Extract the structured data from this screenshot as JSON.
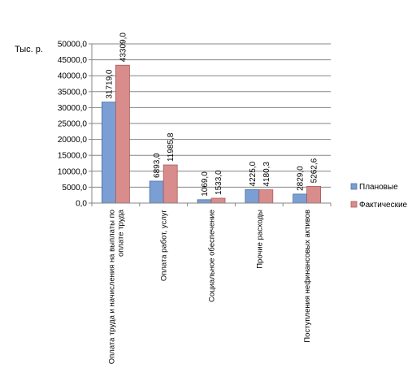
{
  "chart_data": {
    "type": "bar",
    "unit_label": "Тыс. р.",
    "categories": [
      [
        "Оплата труда и начисления на выплаты по",
        "оплате труда"
      ],
      [
        "Оплата работ, услуг"
      ],
      [
        "Социальное обеспечение"
      ],
      [
        "Прочие расходы"
      ],
      [
        "Поступления нефинансовых активов"
      ]
    ],
    "series": [
      {
        "name": "Плановые",
        "color": "#7b9fd4",
        "stroke": "#4a6fa5",
        "values": [
          31719.0,
          6893.0,
          1069.0,
          4225.0,
          2829.0
        ],
        "labels": [
          "31719,0",
          "6893,0",
          "1069,0",
          "4225,0",
          "2829,0"
        ]
      },
      {
        "name": "Фактические",
        "color": "#d98c8c",
        "stroke": "#a85a5a",
        "values": [
          43309.0,
          11985.8,
          1533.0,
          4180.3,
          5262.6
        ],
        "labels": [
          "43309,0",
          "11985,8",
          "1533,0",
          "4180,3",
          "5262,6"
        ]
      }
    ],
    "ylim": [
      0,
      50000
    ],
    "ytick_step": 5000,
    "ytick_labels": [
      "0,0",
      "5000,0",
      "10000,0",
      "15000,0",
      "20000,0",
      "25000,0",
      "30000,0",
      "35000,0",
      "40000,0",
      "45000,0",
      "50000,0"
    ],
    "grid": true,
    "legend_position": "right"
  }
}
